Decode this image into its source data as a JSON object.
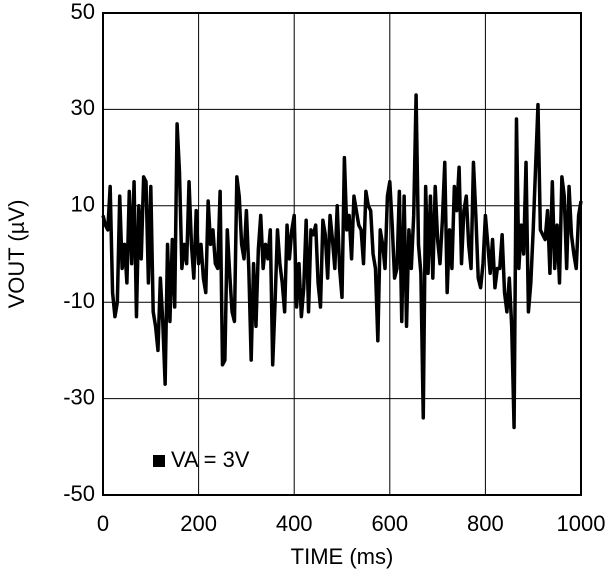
{
  "chart_data": {
    "type": "line",
    "xlabel": "TIME (ms)",
    "ylabel": "VOUT (µV)",
    "x": [
      0,
      5,
      10,
      15,
      20,
      25,
      30,
      35,
      40,
      45,
      50,
      55,
      60,
      65,
      70,
      75,
      80,
      85,
      90,
      95,
      100,
      105,
      110,
      115,
      120,
      125,
      130,
      135,
      140,
      145,
      150,
      155,
      160,
      165,
      170,
      175,
      180,
      185,
      190,
      195,
      200,
      205,
      210,
      215,
      220,
      225,
      230,
      235,
      240,
      245,
      250,
      255,
      260,
      265,
      270,
      275,
      280,
      285,
      290,
      295,
      300,
      305,
      310,
      315,
      320,
      325,
      330,
      335,
      340,
      345,
      350,
      355,
      360,
      365,
      370,
      375,
      380,
      385,
      390,
      395,
      400,
      405,
      410,
      415,
      420,
      425,
      430,
      435,
      440,
      445,
      450,
      455,
      460,
      465,
      470,
      475,
      480,
      485,
      490,
      495,
      500,
      505,
      510,
      515,
      520,
      525,
      530,
      535,
      540,
      545,
      550,
      555,
      560,
      565,
      570,
      575,
      580,
      585,
      590,
      595,
      600,
      605,
      610,
      615,
      620,
      625,
      630,
      635,
      640,
      645,
      650,
      655,
      660,
      665,
      670,
      675,
      680,
      685,
      690,
      695,
      700,
      705,
      710,
      715,
      720,
      725,
      730,
      735,
      740,
      745,
      750,
      755,
      760,
      765,
      770,
      775,
      780,
      785,
      790,
      795,
      800,
      805,
      810,
      815,
      820,
      825,
      830,
      835,
      840,
      845,
      850,
      855,
      860,
      865,
      870,
      875,
      880,
      885,
      890,
      895,
      900,
      905,
      910,
      915,
      920,
      925,
      930,
      935,
      940,
      945,
      950,
      955,
      960,
      965,
      970,
      975,
      980,
      985,
      990,
      995,
      1000
    ],
    "series": [
      {
        "name": "VA = 3V",
        "color": "#000000",
        "values": [
          8,
          6,
          5,
          14,
          -8,
          -13,
          -10,
          12,
          -3,
          2,
          -6,
          13,
          -2,
          15,
          -13,
          10,
          -1,
          16,
          15,
          -6,
          14,
          -12,
          -15,
          -20,
          -5,
          -14,
          -27,
          2,
          -14,
          3,
          -11,
          27,
          17,
          -3,
          2,
          -2,
          15,
          2,
          -5,
          9,
          -2,
          2,
          -5,
          -8,
          11,
          2,
          5,
          -2,
          -3,
          13,
          -23,
          -22,
          5,
          -4,
          -12,
          -14,
          16,
          12,
          2,
          -1,
          9,
          -3,
          -22,
          -2,
          -15,
          1,
          8,
          -3,
          2,
          -1,
          5,
          -23,
          -10,
          5,
          -2,
          -6,
          -12,
          6,
          -1,
          5,
          8,
          -11,
          -2,
          -13,
          -7,
          7,
          -12,
          5,
          4,
          6,
          -6,
          -11,
          7,
          4,
          -5,
          8,
          3,
          -3,
          10,
          -3,
          -9,
          20,
          5,
          8,
          -1,
          12,
          9,
          6,
          5,
          -2,
          13,
          10,
          9,
          0,
          -3,
          -18,
          5,
          2,
          -3,
          12,
          15,
          6,
          -5,
          -3,
          13,
          -14,
          12,
          -15,
          5,
          -3,
          8,
          33,
          2,
          -4,
          -34,
          14,
          -4,
          12,
          -5,
          14,
          3,
          -2,
          7,
          19,
          -8,
          5,
          -3,
          14,
          9,
          18,
          -2,
          9,
          12,
          2,
          -3,
          19,
          8,
          -5,
          -7,
          -2,
          8,
          2,
          -4,
          3,
          -7,
          -3,
          -3,
          4,
          -8,
          -12,
          -5,
          -15,
          -36,
          28,
          -3,
          6,
          0,
          19,
          -12,
          -6,
          5,
          18,
          31,
          5,
          4,
          3,
          9,
          -4,
          15,
          -3,
          6,
          -6,
          16,
          12,
          -3,
          14,
          4,
          0,
          -3,
          8,
          11
        ]
      }
    ],
    "xlim": [
      0,
      1000
    ],
    "xticks": [
      0,
      200,
      400,
      600,
      800,
      1000
    ],
    "ylim": [
      -50,
      50
    ],
    "yticks": [
      -50,
      -30,
      -10,
      10,
      30,
      50
    ],
    "grid": true,
    "legend": "lower left"
  }
}
